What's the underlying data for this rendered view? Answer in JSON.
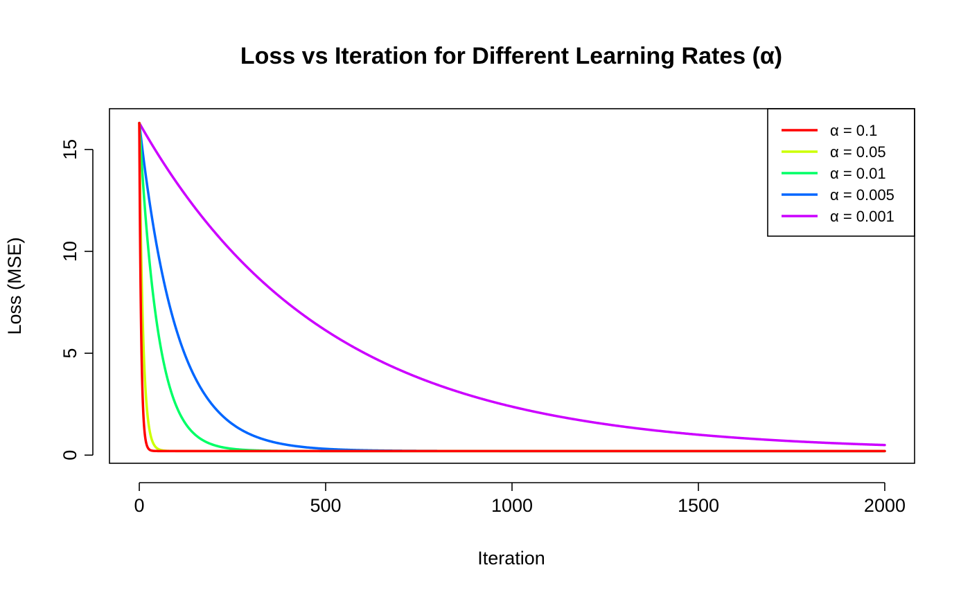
{
  "chart_data": {
    "type": "line",
    "title": "Loss vs Iteration for Different Learning Rates (α)",
    "xlabel": "Iteration",
    "ylabel": "Loss (MSE)",
    "xlim": [
      -80,
      2080
    ],
    "ylim": [
      -0.4,
      17
    ],
    "xticks": [
      0,
      500,
      1000,
      1500,
      2000
    ],
    "xtick_labels": [
      "0",
      "500",
      "1000",
      "1500",
      "2000"
    ],
    "yticks": [
      0,
      5,
      10,
      15
    ],
    "ytick_labels": [
      "0",
      "5",
      "10",
      "15"
    ],
    "grid": false,
    "legend_position": "top-right",
    "initial_loss": 16.3,
    "final_loss": 0.2,
    "series": [
      {
        "name": "α = 0.1",
        "alpha": 0.1,
        "color": "#ff0000"
      },
      {
        "name": "α = 0.05",
        "alpha": 0.05,
        "color": "#ccff00"
      },
      {
        "name": "α = 0.01",
        "alpha": 0.01,
        "color": "#00ff66"
      },
      {
        "name": "α = 0.005",
        "alpha": 0.005,
        "color": "#0066ff"
      },
      {
        "name": "α = 0.001",
        "alpha": 0.001,
        "color": "#cc00ff"
      }
    ],
    "x_range": [
      0,
      2000
    ]
  }
}
